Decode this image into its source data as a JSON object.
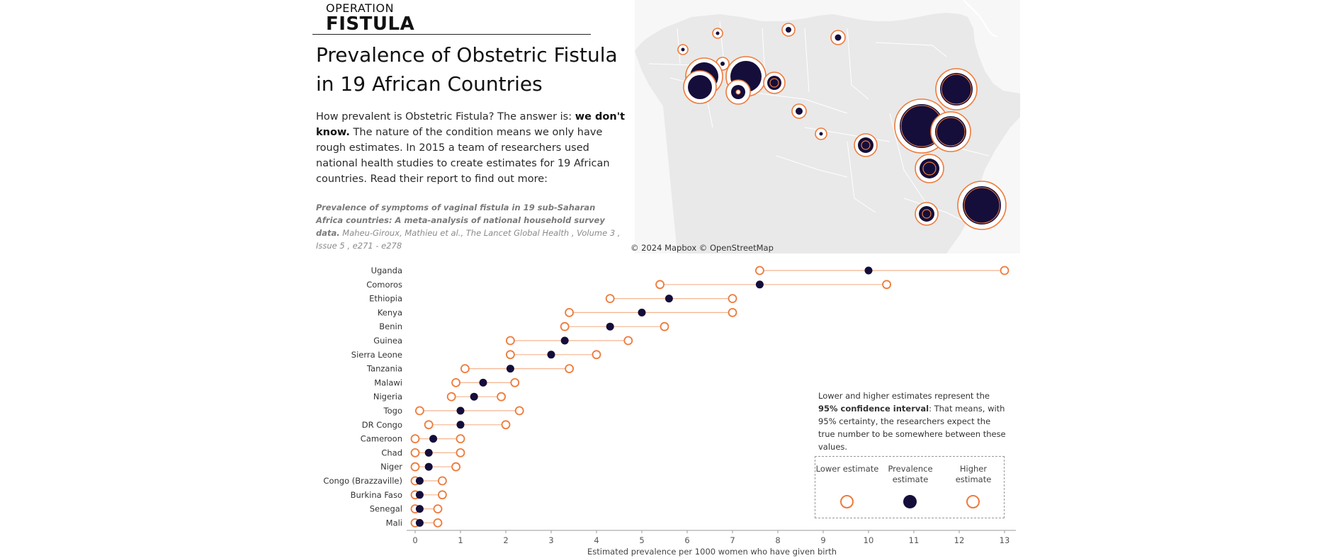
{
  "brand": {
    "top": "OPERATION",
    "main": "FISTULA"
  },
  "title": "Prevalence of Obstetric Fistula in 19 African Countries",
  "intro": {
    "part1": "How prevalent is Obstetric Fistula? The answer is: ",
    "bold": "we don't know.",
    "part2": " The nature of the condition means we only have rough estimates. In 2015 a team of researchers used national health studies to create estimates for 19 African countries. Read their report to find out more:"
  },
  "citation": {
    "bold": "Prevalence of symptoms of vaginal fistula in 19 sub-Saharan Africa countries: A meta-analysis of national household survey data.",
    "rest": " Maheu-Giroux, Mathieu et al., The Lancet Global Health , Volume 3 , Issue 5 , e271 - e278"
  },
  "map": {
    "credit": "© 2024 Mapbox  © OpenStreetMap"
  },
  "note": {
    "part1": "Lower and higher estimates represent the ",
    "bold": "95% confidence interval",
    "part2": ": That means, with 95% certainty, the researchers expect the true number to be somewhere between these values."
  },
  "legend": {
    "lower": "Lower estimate",
    "prevalence": "Prevalence estimate",
    "higher": "Higher estimate"
  },
  "colors": {
    "accent": "#ee7a3a",
    "prevalence": "#150e3b",
    "map_land": "#e9e9e9",
    "map_border": "#ffffff"
  },
  "chart_data": {
    "type": "dot",
    "xlabel": "Estimated prevalence per 1000 women who have given birth",
    "xlim": [
      0,
      13
    ],
    "xticks": [
      0,
      1,
      2,
      3,
      4,
      5,
      6,
      7,
      8,
      9,
      10,
      11,
      12,
      13
    ],
    "categories": [
      "Uganda",
      "Comoros",
      "Ethiopia",
      "Kenya",
      "Benin",
      "Guinea",
      "Sierra Leone",
      "Tanzania",
      "Malawi",
      "Nigeria",
      "Togo",
      "DR Congo",
      "Cameroon",
      "Chad",
      "Niger",
      "Congo (Brazzaville)",
      "Burkina Faso",
      "Senegal",
      "Mali"
    ],
    "series": [
      {
        "name": "Lower estimate",
        "values": [
          7.6,
          5.4,
          4.3,
          3.4,
          3.3,
          2.1,
          2.1,
          1.1,
          0.9,
          0.8,
          0.1,
          0.3,
          0.0,
          0.0,
          0.0,
          0.0,
          0.0,
          0.0,
          0.0
        ]
      },
      {
        "name": "Prevalence estimate",
        "values": [
          10.0,
          7.6,
          5.6,
          5.0,
          4.3,
          3.3,
          3.0,
          2.1,
          1.5,
          1.3,
          1.0,
          1.0,
          0.4,
          0.3,
          0.3,
          0.1,
          0.1,
          0.1,
          0.1
        ]
      },
      {
        "name": "Higher estimate",
        "values": [
          13.0,
          10.4,
          7.0,
          7.0,
          5.5,
          4.7,
          4.0,
          3.4,
          2.2,
          1.9,
          2.3,
          2.0,
          1.0,
          1.0,
          0.9,
          0.6,
          0.6,
          0.5,
          0.5
        ]
      }
    ]
  }
}
